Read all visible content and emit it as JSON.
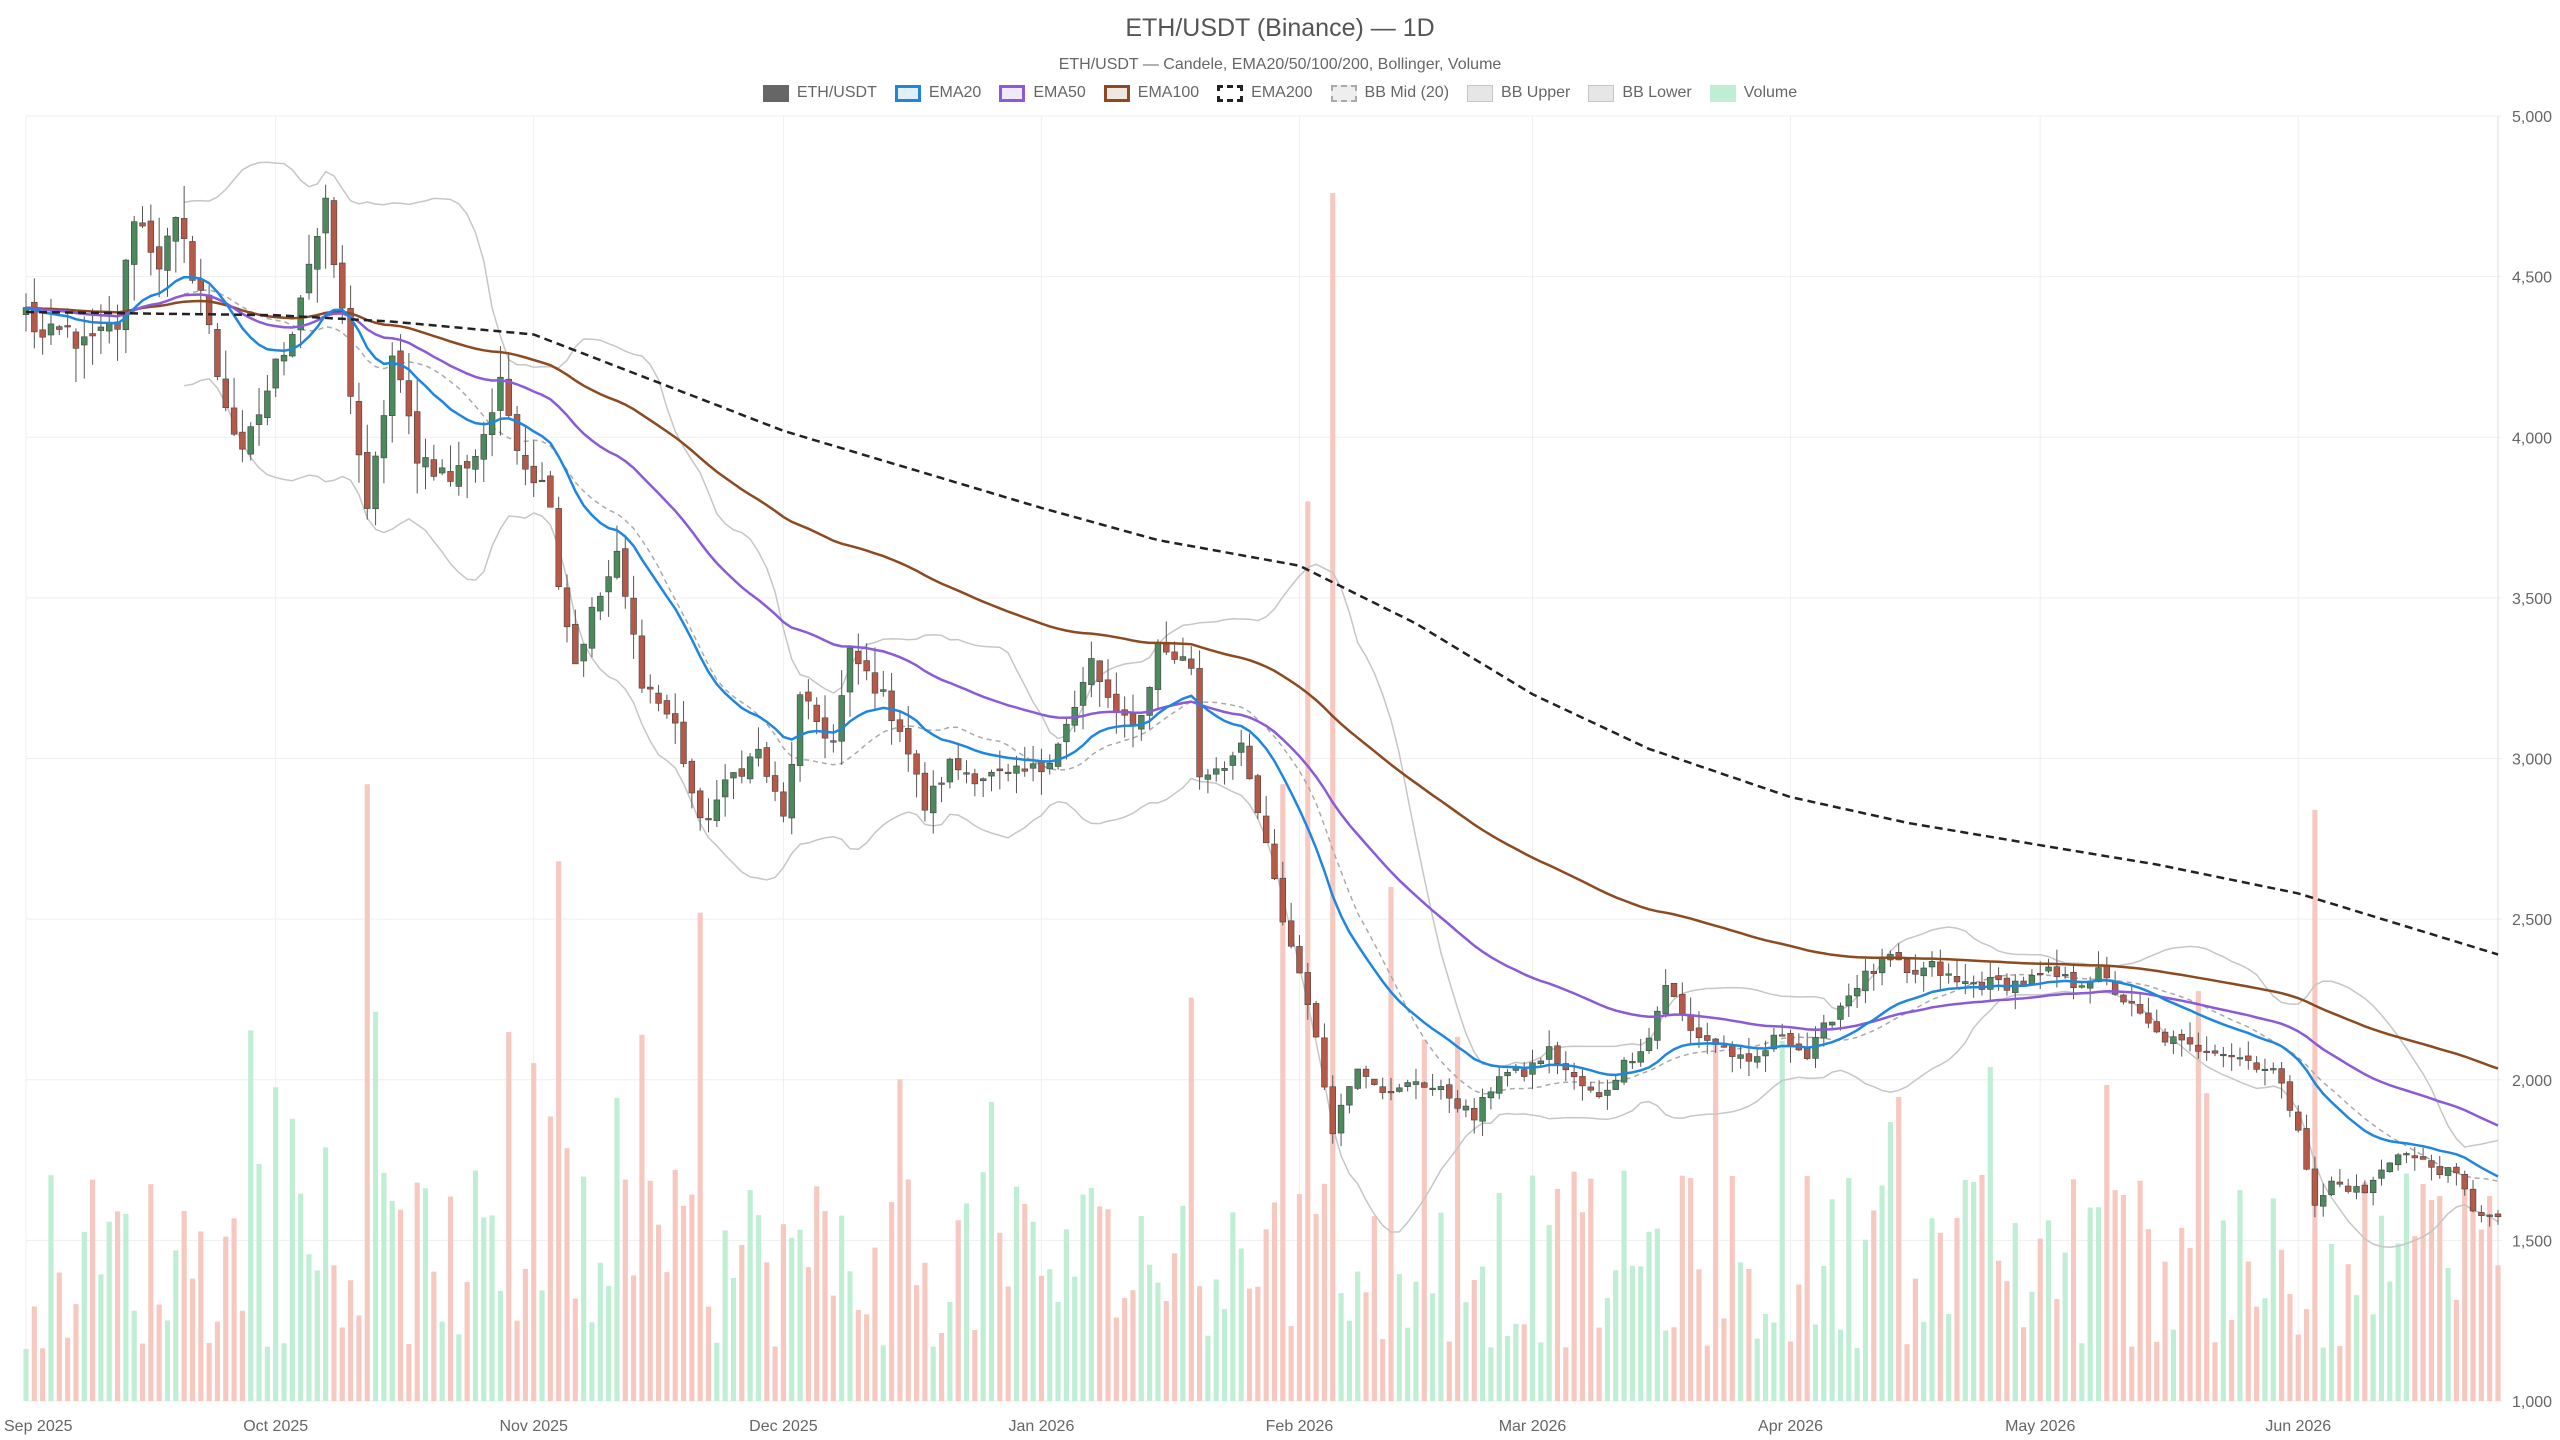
{
  "chart_data": {
    "type": "candlestick",
    "title": "ETH/USDT (Binance) — 1D",
    "subtitle": "ETH/USDT — Candele, EMA20/50/100/200, Bollinger, Volume",
    "legend_position": "top-center",
    "grid": true,
    "y_axis": {
      "position": "right",
      "min": 1000,
      "max": 5000,
      "ticks": [
        "1,000",
        "1,500",
        "2,000",
        "2,500",
        "3,000",
        "3,500",
        "4,000",
        "4,500",
        "5,000"
      ]
    },
    "x_axis": {
      "ticks": [
        "Sep 2025",
        "Oct 2025",
        "Nov 2025",
        "Dec 2025",
        "Jan 2026",
        "Feb 2026",
        "Mar 2026",
        "Apr 2026",
        "May 2026",
        "Jun 2026"
      ]
    },
    "date_range": [
      "2025-09-01",
      "2026-06-25"
    ],
    "legend": [
      {
        "name": "ETH/USDT",
        "color": "#666666"
      },
      {
        "name": "EMA20",
        "color": "#1f86e0"
      },
      {
        "name": "EMA50",
        "color": "#8a5ad9"
      },
      {
        "name": "EMA100",
        "color": "#8b4a20"
      },
      {
        "name": "EMA200",
        "color": "#222222"
      },
      {
        "name": "BB Mid (20)",
        "color": "#aaaaaa"
      },
      {
        "name": "BB Upper",
        "color": "#c6c6c6"
      },
      {
        "name": "BB Lower",
        "color": "#c6c6c6"
      },
      {
        "name": "Volume",
        "color": "#bfeed5"
      }
    ],
    "colors": {
      "up": "#4a8a5c",
      "down": "#b55a48",
      "volume_up": "#bfeed5",
      "volume_down": "#f7c8bf"
    },
    "close_anchors": [
      [
        "2025-09-01",
        4390
      ],
      [
        "2025-09-03",
        4300
      ],
      [
        "2025-09-06",
        4330
      ],
      [
        "2025-09-08",
        4280
      ],
      [
        "2025-09-12",
        4350
      ],
      [
        "2025-09-14",
        4700
      ],
      [
        "2025-09-17",
        4550
      ],
      [
        "2025-09-19",
        4650
      ],
      [
        "2025-09-22",
        4460
      ],
      [
        "2025-09-24",
        4200
      ],
      [
        "2025-09-27",
        3930
      ],
      [
        "2025-09-30",
        4150
      ],
      [
        "2025-10-03",
        4350
      ],
      [
        "2025-10-05",
        4550
      ],
      [
        "2025-10-07",
        4700
      ],
      [
        "2025-10-09",
        4380
      ],
      [
        "2025-10-10",
        4150
      ],
      [
        "2025-10-12",
        3750
      ],
      [
        "2025-10-15",
        4250
      ],
      [
        "2025-10-18",
        3950
      ],
      [
        "2025-10-22",
        3870
      ],
      [
        "2025-10-25",
        3950
      ],
      [
        "2025-10-28",
        4150
      ],
      [
        "2025-10-31",
        3920
      ],
      [
        "2025-11-03",
        3820
      ],
      [
        "2025-11-04",
        3550
      ],
      [
        "2025-11-06",
        3300
      ],
      [
        "2025-11-08",
        3450
      ],
      [
        "2025-11-11",
        3620
      ],
      [
        "2025-11-14",
        3250
      ],
      [
        "2025-11-18",
        3100
      ],
      [
        "2025-11-21",
        2790
      ],
      [
        "2025-11-25",
        2950
      ],
      [
        "2025-11-28",
        3020
      ],
      [
        "2025-12-01",
        2810
      ],
      [
        "2025-12-03",
        3180
      ],
      [
        "2025-12-07",
        3050
      ],
      [
        "2025-12-09",
        3320
      ],
      [
        "2025-12-12",
        3230
      ],
      [
        "2025-12-15",
        3100
      ],
      [
        "2025-12-18",
        2850
      ],
      [
        "2025-12-21",
        2980
      ],
      [
        "2025-12-24",
        2950
      ],
      [
        "2025-12-28",
        2940
      ],
      [
        "2026-01-01",
        2970
      ],
      [
        "2026-01-05",
        3150
      ],
      [
        "2026-01-07",
        3300
      ],
      [
        "2026-01-10",
        3120
      ],
      [
        "2026-01-13",
        3130
      ],
      [
        "2026-01-15",
        3350
      ],
      [
        "2026-01-19",
        3290
      ],
      [
        "2026-01-20",
        2950
      ],
      [
        "2026-01-25",
        3020
      ],
      [
        "2026-01-27",
        2830
      ],
      [
        "2026-01-30",
        2500
      ],
      [
        "2026-02-02",
        2250
      ],
      [
        "2026-02-05",
        1850
      ],
      [
        "2026-02-08",
        2050
      ],
      [
        "2026-02-12",
        1950
      ],
      [
        "2026-02-15",
        2000
      ],
      [
        "2026-02-19",
        1950
      ],
      [
        "2026-02-22",
        1880
      ],
      [
        "2026-02-25",
        2020
      ],
      [
        "2026-02-28",
        2020
      ],
      [
        "2026-03-03",
        2090
      ],
      [
        "2026-03-06",
        2000
      ],
      [
        "2026-03-09",
        1940
      ],
      [
        "2026-03-12",
        2050
      ],
      [
        "2026-03-15",
        2130
      ],
      [
        "2026-03-17",
        2300
      ],
      [
        "2026-03-20",
        2150
      ],
      [
        "2026-03-24",
        2100
      ],
      [
        "2026-03-27",
        2040
      ],
      [
        "2026-03-31",
        2150
      ],
      [
        "2026-04-03",
        2070
      ],
      [
        "2026-04-06",
        2200
      ],
      [
        "2026-04-09",
        2300
      ],
      [
        "2026-04-13",
        2380
      ],
      [
        "2026-04-15",
        2320
      ],
      [
        "2026-04-18",
        2350
      ],
      [
        "2026-04-21",
        2300
      ],
      [
        "2026-04-25",
        2300
      ],
      [
        "2026-04-29",
        2300
      ],
      [
        "2026-05-02",
        2330
      ],
      [
        "2026-05-05",
        2300
      ],
      [
        "2026-05-08",
        2330
      ],
      [
        "2026-05-11",
        2250
      ],
      [
        "2026-05-15",
        2140
      ],
      [
        "2026-05-19",
        2100
      ],
      [
        "2026-05-22",
        2100
      ],
      [
        "2026-05-26",
        2060
      ],
      [
        "2026-05-29",
        2030
      ],
      [
        "2026-06-01",
        1860
      ],
      [
        "2026-06-03",
        1600
      ],
      [
        "2026-06-05",
        1680
      ],
      [
        "2026-06-09",
        1650
      ],
      [
        "2026-06-13",
        1780
      ],
      [
        "2026-06-17",
        1730
      ],
      [
        "2026-06-20",
        1700
      ],
      [
        "2026-06-22",
        1600
      ],
      [
        "2026-06-25",
        1560
      ]
    ],
    "ema200_anchors": [
      [
        "2025-09-01",
        4390
      ],
      [
        "2025-10-01",
        4380
      ],
      [
        "2025-10-15",
        4360
      ],
      [
        "2025-11-01",
        4320
      ],
      [
        "2025-11-15",
        4180
      ],
      [
        "2025-12-01",
        4020
      ],
      [
        "2026-01-01",
        3780
      ],
      [
        "2026-01-15",
        3680
      ],
      [
        "2026-02-01",
        3600
      ],
      [
        "2026-02-15",
        3420
      ],
      [
        "2026-03-01",
        3200
      ],
      [
        "2026-03-15",
        3030
      ],
      [
        "2026-04-01",
        2880
      ],
      [
        "2026-04-15",
        2800
      ],
      [
        "2026-05-01",
        2730
      ],
      [
        "2026-05-15",
        2670
      ],
      [
        "2026-06-01",
        2580
      ],
      [
        "2026-06-25",
        2390
      ]
    ],
    "volume_scale": {
      "min": 0,
      "max": 5000
    },
    "volume_spikes": [
      [
        "2025-10-12",
        2400
      ],
      [
        "2025-11-04",
        2100
      ],
      [
        "2025-11-21",
        1900
      ],
      [
        "2026-01-30",
        2400
      ],
      [
        "2026-02-02",
        3500
      ],
      [
        "2026-02-05",
        4700
      ],
      [
        "2026-02-12",
        2000
      ],
      [
        "2026-06-03",
        2300
      ]
    ]
  }
}
